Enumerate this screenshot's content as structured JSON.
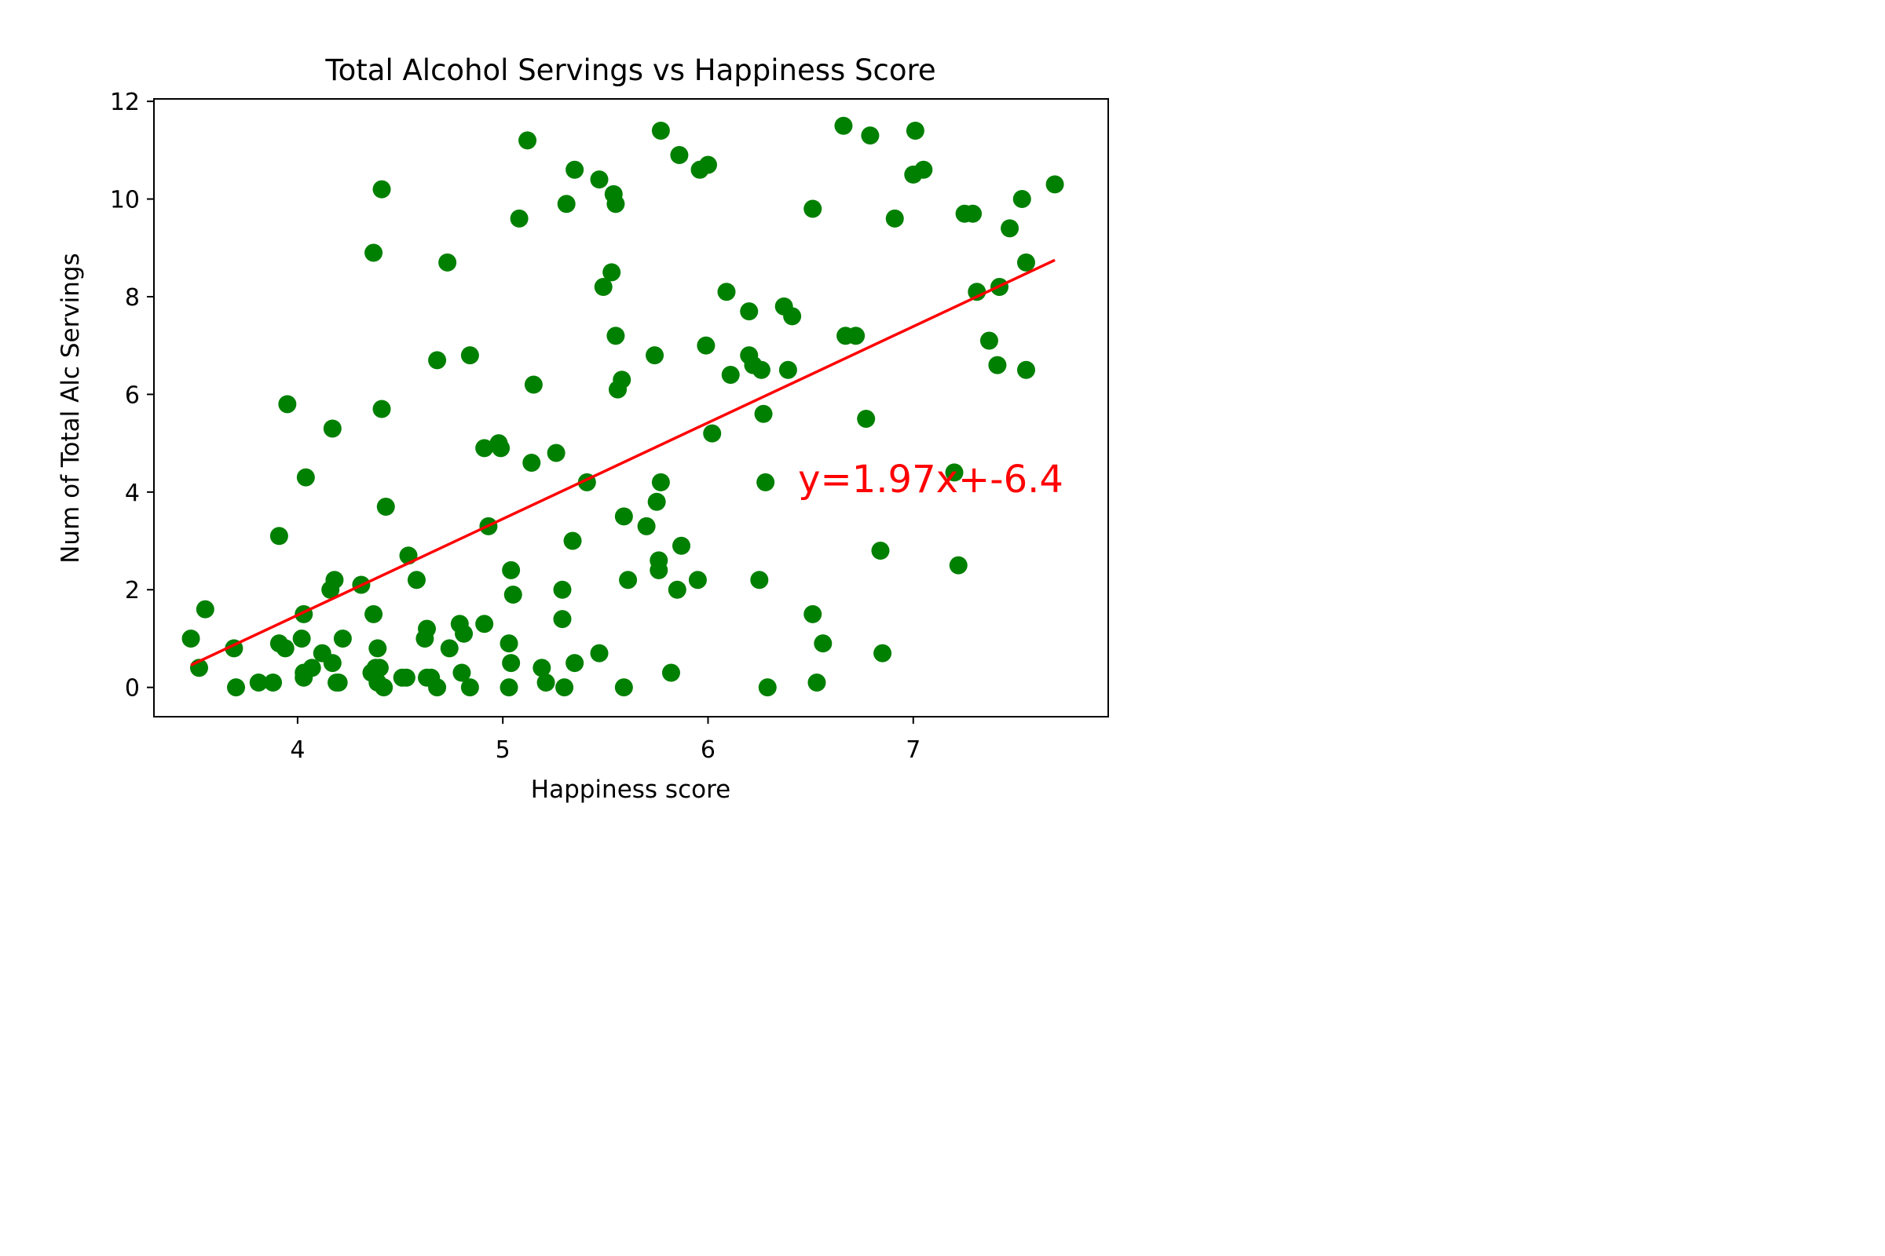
{
  "chart_data": {
    "type": "scatter",
    "title": "Total Alcohol Servings vs Happiness Score",
    "xlabel": "Happiness score",
    "ylabel": "Num of Total Alc Servings",
    "xlim": [
      3.3,
      7.95
    ],
    "ylim": [
      -0.6,
      12.05
    ],
    "xticks": [
      4,
      5,
      6,
      7
    ],
    "yticks": [
      0,
      2,
      4,
      6,
      8,
      10,
      12
    ],
    "grid": false,
    "point_color": "#008000",
    "line_color": "#ff0000",
    "points": [
      [
        3.48,
        1.0
      ],
      [
        3.52,
        0.4
      ],
      [
        3.55,
        1.6
      ],
      [
        3.69,
        0.8
      ],
      [
        3.7,
        0.0
      ],
      [
        3.81,
        0.1
      ],
      [
        3.88,
        0.1
      ],
      [
        3.91,
        3.1
      ],
      [
        3.91,
        0.9
      ],
      [
        3.94,
        0.8
      ],
      [
        3.95,
        5.8
      ],
      [
        4.02,
        1.0
      ],
      [
        4.03,
        1.5
      ],
      [
        4.03,
        0.3
      ],
      [
        4.03,
        0.2
      ],
      [
        4.04,
        4.3
      ],
      [
        4.07,
        0.4
      ],
      [
        4.12,
        0.7
      ],
      [
        4.16,
        2.0
      ],
      [
        4.17,
        5.3
      ],
      [
        4.17,
        0.5
      ],
      [
        4.18,
        2.2
      ],
      [
        4.19,
        0.1
      ],
      [
        4.2,
        0.1
      ],
      [
        4.22,
        1.0
      ],
      [
        4.31,
        2.1
      ],
      [
        4.36,
        0.3
      ],
      [
        4.37,
        8.9
      ],
      [
        4.37,
        1.5
      ],
      [
        4.38,
        0.4
      ],
      [
        4.39,
        0.8
      ],
      [
        4.39,
        0.1
      ],
      [
        4.4,
        0.4
      ],
      [
        4.41,
        10.2
      ],
      [
        4.41,
        5.7
      ],
      [
        4.42,
        0.0
      ],
      [
        4.43,
        3.7
      ],
      [
        4.51,
        0.2
      ],
      [
        4.53,
        0.2
      ],
      [
        4.54,
        2.7
      ],
      [
        4.58,
        2.2
      ],
      [
        4.62,
        1.0
      ],
      [
        4.63,
        1.2
      ],
      [
        4.63,
        0.2
      ],
      [
        4.65,
        0.2
      ],
      [
        4.68,
        6.7
      ],
      [
        4.68,
        0.0
      ],
      [
        4.73,
        8.7
      ],
      [
        4.74,
        0.8
      ],
      [
        4.79,
        1.3
      ],
      [
        4.8,
        0.3
      ],
      [
        4.81,
        1.1
      ],
      [
        4.84,
        6.8
      ],
      [
        4.84,
        0.0
      ],
      [
        4.91,
        4.9
      ],
      [
        4.91,
        1.3
      ],
      [
        4.93,
        3.3
      ],
      [
        4.98,
        5.0
      ],
      [
        4.99,
        4.9
      ],
      [
        5.03,
        0.9
      ],
      [
        5.03,
        0.0
      ],
      [
        5.04,
        0.5
      ],
      [
        5.04,
        2.4
      ],
      [
        5.05,
        1.9
      ],
      [
        5.08,
        9.6
      ],
      [
        5.12,
        11.2
      ],
      [
        5.14,
        4.6
      ],
      [
        5.15,
        6.2
      ],
      [
        5.19,
        0.4
      ],
      [
        5.21,
        0.1
      ],
      [
        5.26,
        4.8
      ],
      [
        5.29,
        2.0
      ],
      [
        5.29,
        1.4
      ],
      [
        5.3,
        0.0
      ],
      [
        5.31,
        9.9
      ],
      [
        5.35,
        10.6
      ],
      [
        5.34,
        3.0
      ],
      [
        5.35,
        0.5
      ],
      [
        5.41,
        4.2
      ],
      [
        5.47,
        10.4
      ],
      [
        5.47,
        0.7
      ],
      [
        5.49,
        8.2
      ],
      [
        5.53,
        8.5
      ],
      [
        5.54,
        10.1
      ],
      [
        5.55,
        9.9
      ],
      [
        5.55,
        7.2
      ],
      [
        5.56,
        6.1
      ],
      [
        5.58,
        6.3
      ],
      [
        5.59,
        3.5
      ],
      [
        5.59,
        0.0
      ],
      [
        5.61,
        2.2
      ],
      [
        5.7,
        3.3
      ],
      [
        5.74,
        6.8
      ],
      [
        5.75,
        3.8
      ],
      [
        5.76,
        2.6
      ],
      [
        5.76,
        2.4
      ],
      [
        5.77,
        11.4
      ],
      [
        5.77,
        4.2
      ],
      [
        5.82,
        0.3
      ],
      [
        5.85,
        2.0
      ],
      [
        5.86,
        10.9
      ],
      [
        5.87,
        2.9
      ],
      [
        5.95,
        2.2
      ],
      [
        5.96,
        10.6
      ],
      [
        5.99,
        7.0
      ],
      [
        6.0,
        10.7
      ],
      [
        6.02,
        5.2
      ],
      [
        6.09,
        8.1
      ],
      [
        6.11,
        6.4
      ],
      [
        6.2,
        7.7
      ],
      [
        6.2,
        6.8
      ],
      [
        6.22,
        6.6
      ],
      [
        6.25,
        2.2
      ],
      [
        6.26,
        6.5
      ],
      [
        6.27,
        5.6
      ],
      [
        6.28,
        4.2
      ],
      [
        6.29,
        0.0
      ],
      [
        6.37,
        7.8
      ],
      [
        6.39,
        6.5
      ],
      [
        6.41,
        7.6
      ],
      [
        6.51,
        9.8
      ],
      [
        6.51,
        1.5
      ],
      [
        6.53,
        0.1
      ],
      [
        6.56,
        0.9
      ],
      [
        6.66,
        11.5
      ],
      [
        6.67,
        7.2
      ],
      [
        6.72,
        7.2
      ],
      [
        6.77,
        5.5
      ],
      [
        6.79,
        11.3
      ],
      [
        6.84,
        2.8
      ],
      [
        6.85,
        0.7
      ],
      [
        6.91,
        9.6
      ],
      [
        7.0,
        10.5
      ],
      [
        7.01,
        11.4
      ],
      [
        7.05,
        10.6
      ],
      [
        7.2,
        4.4
      ],
      [
        7.22,
        2.5
      ],
      [
        7.25,
        9.7
      ],
      [
        7.29,
        9.7
      ],
      [
        7.31,
        8.1
      ],
      [
        7.37,
        7.1
      ],
      [
        7.41,
        6.6
      ],
      [
        7.42,
        8.2
      ],
      [
        7.47,
        9.4
      ],
      [
        7.53,
        10.0
      ],
      [
        7.55,
        8.7
      ],
      [
        7.55,
        6.5
      ],
      [
        7.69,
        10.3
      ]
    ],
    "regression": {
      "slope": 1.97,
      "intercept": -6.4,
      "x_range": [
        3.48,
        7.69
      ],
      "label": "y=1.97x+-6.4",
      "label_anchor": [
        6.5,
        4.0
      ]
    }
  }
}
